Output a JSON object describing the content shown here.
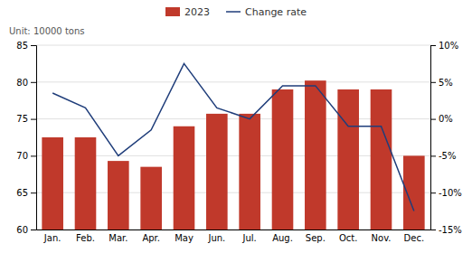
{
  "chart_data": {
    "type": "bar",
    "ylabel": "Unit: 10000 tons",
    "categories": [
      "Jan.",
      "Feb.",
      "Mar.",
      "Apr.",
      "May",
      "Jun.",
      "Jul.",
      "Aug.",
      "Sep.",
      "Oct.",
      "Nov.",
      "Dec."
    ],
    "series": [
      {
        "name": "2023",
        "type": "bar",
        "color": "#c0392b",
        "values": [
          72.5,
          72.5,
          69.3,
          68.5,
          74.0,
          75.7,
          75.7,
          79.0,
          80.2,
          79.0,
          79.0,
          70.0
        ]
      },
      {
        "name": "Change rate",
        "type": "line",
        "axis": "y2",
        "color": "#1f3d7a",
        "values": [
          3.5,
          1.5,
          -5.0,
          -1.5,
          7.5,
          1.5,
          0.0,
          4.5,
          4.5,
          -1.0,
          -1.0,
          -12.5
        ]
      }
    ],
    "ylim": [
      60,
      85
    ],
    "yticks": [
      60,
      65,
      70,
      75,
      80,
      85
    ],
    "y2lim": [
      -15,
      10
    ],
    "y2ticks": [
      {
        "value": -15,
        "label": "-15%"
      },
      {
        "value": -10,
        "label": "-10%"
      },
      {
        "value": -5,
        "label": "-5%"
      },
      {
        "value": 0,
        "label": "0%"
      },
      {
        "value": 5,
        "label": "5%"
      },
      {
        "value": 10,
        "label": "10%"
      }
    ],
    "grid": true,
    "legend": "top"
  }
}
